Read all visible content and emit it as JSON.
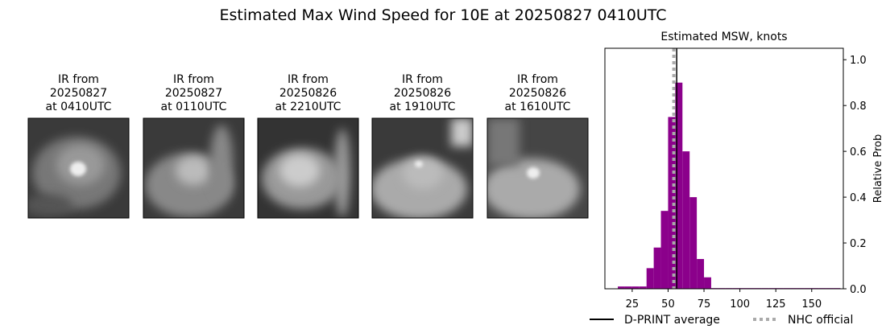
{
  "title": "Estimated Max Wind Speed for 10E at 20250827 0410UTC",
  "panels": [
    {
      "label": [
        "IR from",
        "20250827",
        "at 0410UTC"
      ]
    },
    {
      "label": [
        "IR from",
        "20250827",
        "at 0110UTC"
      ]
    },
    {
      "label": [
        "IR from",
        "20250826",
        "at 2210UTC"
      ]
    },
    {
      "label": [
        "IR from",
        "20250826",
        "at 1910UTC"
      ]
    },
    {
      "label": [
        "IR from",
        "20250826",
        "at 1610UTC"
      ]
    }
  ],
  "chart_data": {
    "type": "histogram",
    "title": "Estimated MSW, knots",
    "y_label": "Relative Prob",
    "bins": [
      15,
      20,
      25,
      30,
      35,
      40,
      45,
      50,
      55,
      60,
      65,
      70,
      75,
      80,
      85,
      90,
      95,
      100,
      105,
      110,
      115,
      120,
      125,
      130,
      135,
      140,
      145,
      150,
      155,
      160,
      165,
      170
    ],
    "values": [
      0.01,
      0.01,
      0.01,
      0.01,
      0.09,
      0.18,
      0.34,
      0.75,
      0.9,
      0.6,
      0.4,
      0.13,
      0.05,
      0.003,
      0.003,
      0.003,
      0.003,
      0.003,
      0.003,
      0.003,
      0.003,
      0.003,
      0.003,
      0.003,
      0.003,
      0.003,
      0.003,
      0.003,
      0.003,
      0.003,
      0.003
    ],
    "color": "#8b008b",
    "xlim": [
      6,
      172
    ],
    "ylim": [
      0,
      1.05
    ],
    "xticks": [
      25,
      50,
      75,
      100,
      125,
      150
    ],
    "yticks": [
      {
        "value": 0,
        "label": "0.0"
      },
      0.2,
      0.4,
      0.6,
      0.8,
      {
        "value": 1,
        "label": "1.0"
      }
    ],
    "lines": [
      {
        "name": "D-PRINT average",
        "value": 56,
        "color": "#000000",
        "style": "solid"
      },
      {
        "name": "NHC official",
        "value": 54,
        "color": "#aaaaaa",
        "style": "dotted"
      }
    ]
  }
}
